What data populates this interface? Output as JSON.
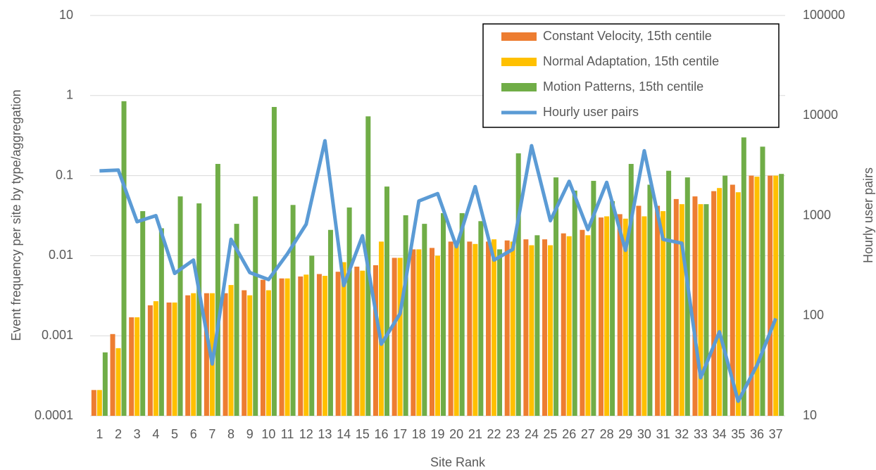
{
  "chart_data": {
    "type": "bar",
    "x_label": "Site Rank",
    "y_label": "Event frequency per site by type/aggregation",
    "y2_label": "Hourly user pairs",
    "categories": [
      "1",
      "2",
      "3",
      "4",
      "5",
      "6",
      "7",
      "8",
      "9",
      "10",
      "11",
      "12",
      "13",
      "14",
      "15",
      "16",
      "17",
      "18",
      "19",
      "20",
      "21",
      "22",
      "23",
      "24",
      "25",
      "26",
      "27",
      "28",
      "29",
      "30",
      "31",
      "32",
      "33",
      "34",
      "35",
      "36",
      "37"
    ],
    "ylog": true,
    "y2log": true,
    "ylim": [
      0.0001,
      10
    ],
    "yticks": [
      0.0001,
      0.001,
      0.01,
      0.1,
      1,
      10
    ],
    "y2lim": [
      10,
      100000
    ],
    "y2ticks": [
      10,
      100,
      1000,
      10000,
      100000
    ],
    "grid": true,
    "legend": "upper right",
    "series": [
      {
        "name": "Constant Velocity, 15th centile",
        "type": "bar",
        "color": "#ED7D31",
        "values": [
          0.00021,
          0.00105,
          0.0017,
          0.0024,
          0.0026,
          0.0032,
          0.0034,
          0.0034,
          0.0037,
          0.005,
          0.0052,
          0.0055,
          0.0059,
          0.0063,
          0.0073,
          0.0076,
          0.0094,
          0.012,
          0.0125,
          0.015,
          0.015,
          0.015,
          0.0155,
          0.016,
          0.016,
          0.019,
          0.021,
          0.03,
          0.033,
          0.042,
          0.042,
          0.051,
          0.055,
          0.064,
          0.077,
          0.1,
          0.1
        ]
      },
      {
        "name": "Normal Adaptation, 15th centile",
        "type": "bar",
        "color": "#FFC000",
        "values": [
          0.00021,
          0.0007,
          0.0017,
          0.0027,
          0.0026,
          0.0034,
          0.0034,
          0.0043,
          0.0032,
          0.0037,
          0.0052,
          0.0058,
          0.0056,
          0.0083,
          0.0065,
          0.015,
          0.0094,
          0.012,
          0.01,
          0.015,
          0.014,
          0.016,
          0.015,
          0.0135,
          0.0135,
          0.0175,
          0.018,
          0.031,
          0.029,
          0.031,
          0.036,
          0.044,
          0.044,
          0.07,
          0.062,
          0.097,
          0.1
        ]
      },
      {
        "name": "Motion Patterns, 15th centile",
        "type": "bar",
        "color": "#70AD47",
        "values": [
          0.00062,
          0.85,
          0.036,
          0.022,
          0.055,
          0.045,
          0.14,
          0.025,
          0.055,
          0.72,
          0.043,
          0.01,
          0.021,
          0.04,
          0.55,
          0.073,
          0.032,
          0.025,
          0.034,
          0.034,
          0.027,
          0.012,
          0.19,
          0.018,
          0.095,
          0.065,
          0.086,
          0.048,
          0.14,
          0.077,
          0.115,
          0.095,
          0.044,
          0.1,
          0.3,
          0.23,
          0.105
        ]
      },
      {
        "name": "Hourly user pairs",
        "type": "line",
        "axis": "y2",
        "color": "#5B9BD5",
        "values": [
          2800,
          2850,
          870,
          1000,
          265,
          360,
          33,
          580,
          270,
          230,
          415,
          820,
          5600,
          200,
          630,
          52,
          105,
          1400,
          1660,
          490,
          1950,
          360,
          460,
          5000,
          890,
          2200,
          725,
          2150,
          450,
          4450,
          580,
          530,
          24,
          69,
          14,
          32,
          94
        ]
      }
    ]
  }
}
